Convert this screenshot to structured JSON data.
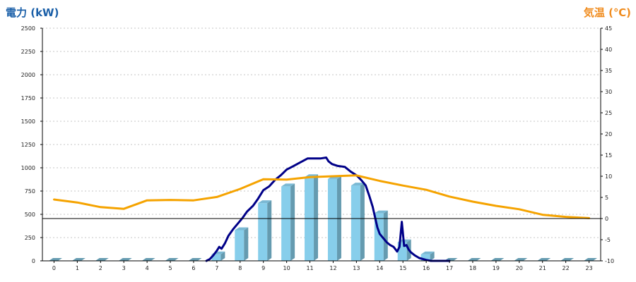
{
  "chart_data": {
    "type": "bar",
    "axes": {
      "left": {
        "label": "電力 (kW)",
        "range": [
          0,
          2500
        ],
        "ticks": [
          "0",
          "250",
          "500",
          "750",
          "1000",
          "1250",
          "1500",
          "1750",
          "2000",
          "2250",
          "2500"
        ],
        "color": "#1a5fa8"
      },
      "right": {
        "label": "気温 (℃)",
        "range": [
          -10,
          45
        ],
        "ticks": [
          "-10",
          "-5",
          "0",
          "5",
          "10",
          "15",
          "20",
          "25",
          "30",
          "35",
          "40",
          "45"
        ],
        "color": "#f08c1e"
      },
      "x": {
        "categories": [
          "0",
          "1",
          "2",
          "3",
          "4",
          "5",
          "6",
          "7",
          "8",
          "9",
          "10",
          "11",
          "12",
          "13",
          "14",
          "15",
          "16",
          "17",
          "18",
          "19",
          "20",
          "21",
          "22",
          "23"
        ]
      }
    },
    "grid": true,
    "series": [
      {
        "kind": "bar",
        "axis": "left",
        "color": "#87ceeb",
        "values": [
          0,
          0,
          0,
          0,
          0,
          0,
          0,
          70,
          330,
          620,
          800,
          900,
          880,
          810,
          510,
          200,
          70,
          0,
          0,
          0,
          0,
          0,
          0,
          0
        ]
      },
      {
        "kind": "line",
        "axis": "left",
        "color": "#000088",
        "x": [
          6.55,
          6.7,
          6.85,
          7,
          7.1,
          7.2,
          7.35,
          7.5,
          7.7,
          7.9,
          8.1,
          8.3,
          8.55,
          8.75,
          9,
          9.25,
          9.5,
          9.75,
          10,
          10.3,
          10.6,
          10.9,
          11.2,
          11.45,
          11.7,
          11.8,
          11.95,
          12.2,
          12.5,
          12.75,
          13,
          13.2,
          13.4,
          13.55,
          13.7,
          13.8,
          13.9,
          14,
          14.1,
          14.2,
          14.3,
          14.45,
          14.6,
          14.75,
          14.85,
          14.95,
          15.05,
          15.15,
          15.25,
          15.35,
          15.5,
          15.7,
          16,
          16.2,
          16.4,
          16.55,
          16.7,
          16.85,
          17
        ],
        "y": [
          0,
          20,
          60,
          110,
          150,
          130,
          190,
          270,
          340,
          400,
          460,
          530,
          590,
          660,
          760,
          800,
          870,
          920,
          980,
          1020,
          1060,
          1100,
          1100,
          1100,
          1110,
          1070,
          1040,
          1020,
          1010,
          960,
          920,
          870,
          810,
          700,
          580,
          470,
          360,
          290,
          260,
          230,
          200,
          170,
          150,
          100,
          150,
          420,
          160,
          170,
          120,
          90,
          60,
          30,
          10,
          0,
          0,
          0,
          0,
          0,
          0
        ]
      },
      {
        "kind": "line",
        "axis": "right",
        "color": "#f5a300",
        "values": [
          4.5,
          3.8,
          2.7,
          2.3,
          4.3,
          4.4,
          4.3,
          5.1,
          7.0,
          9.3,
          9.2,
          9.8,
          10.0,
          10.2,
          8.9,
          7.8,
          6.8,
          5.2,
          4.0,
          3.0,
          2.2,
          0.9,
          0.4,
          0.1
        ]
      }
    ]
  }
}
